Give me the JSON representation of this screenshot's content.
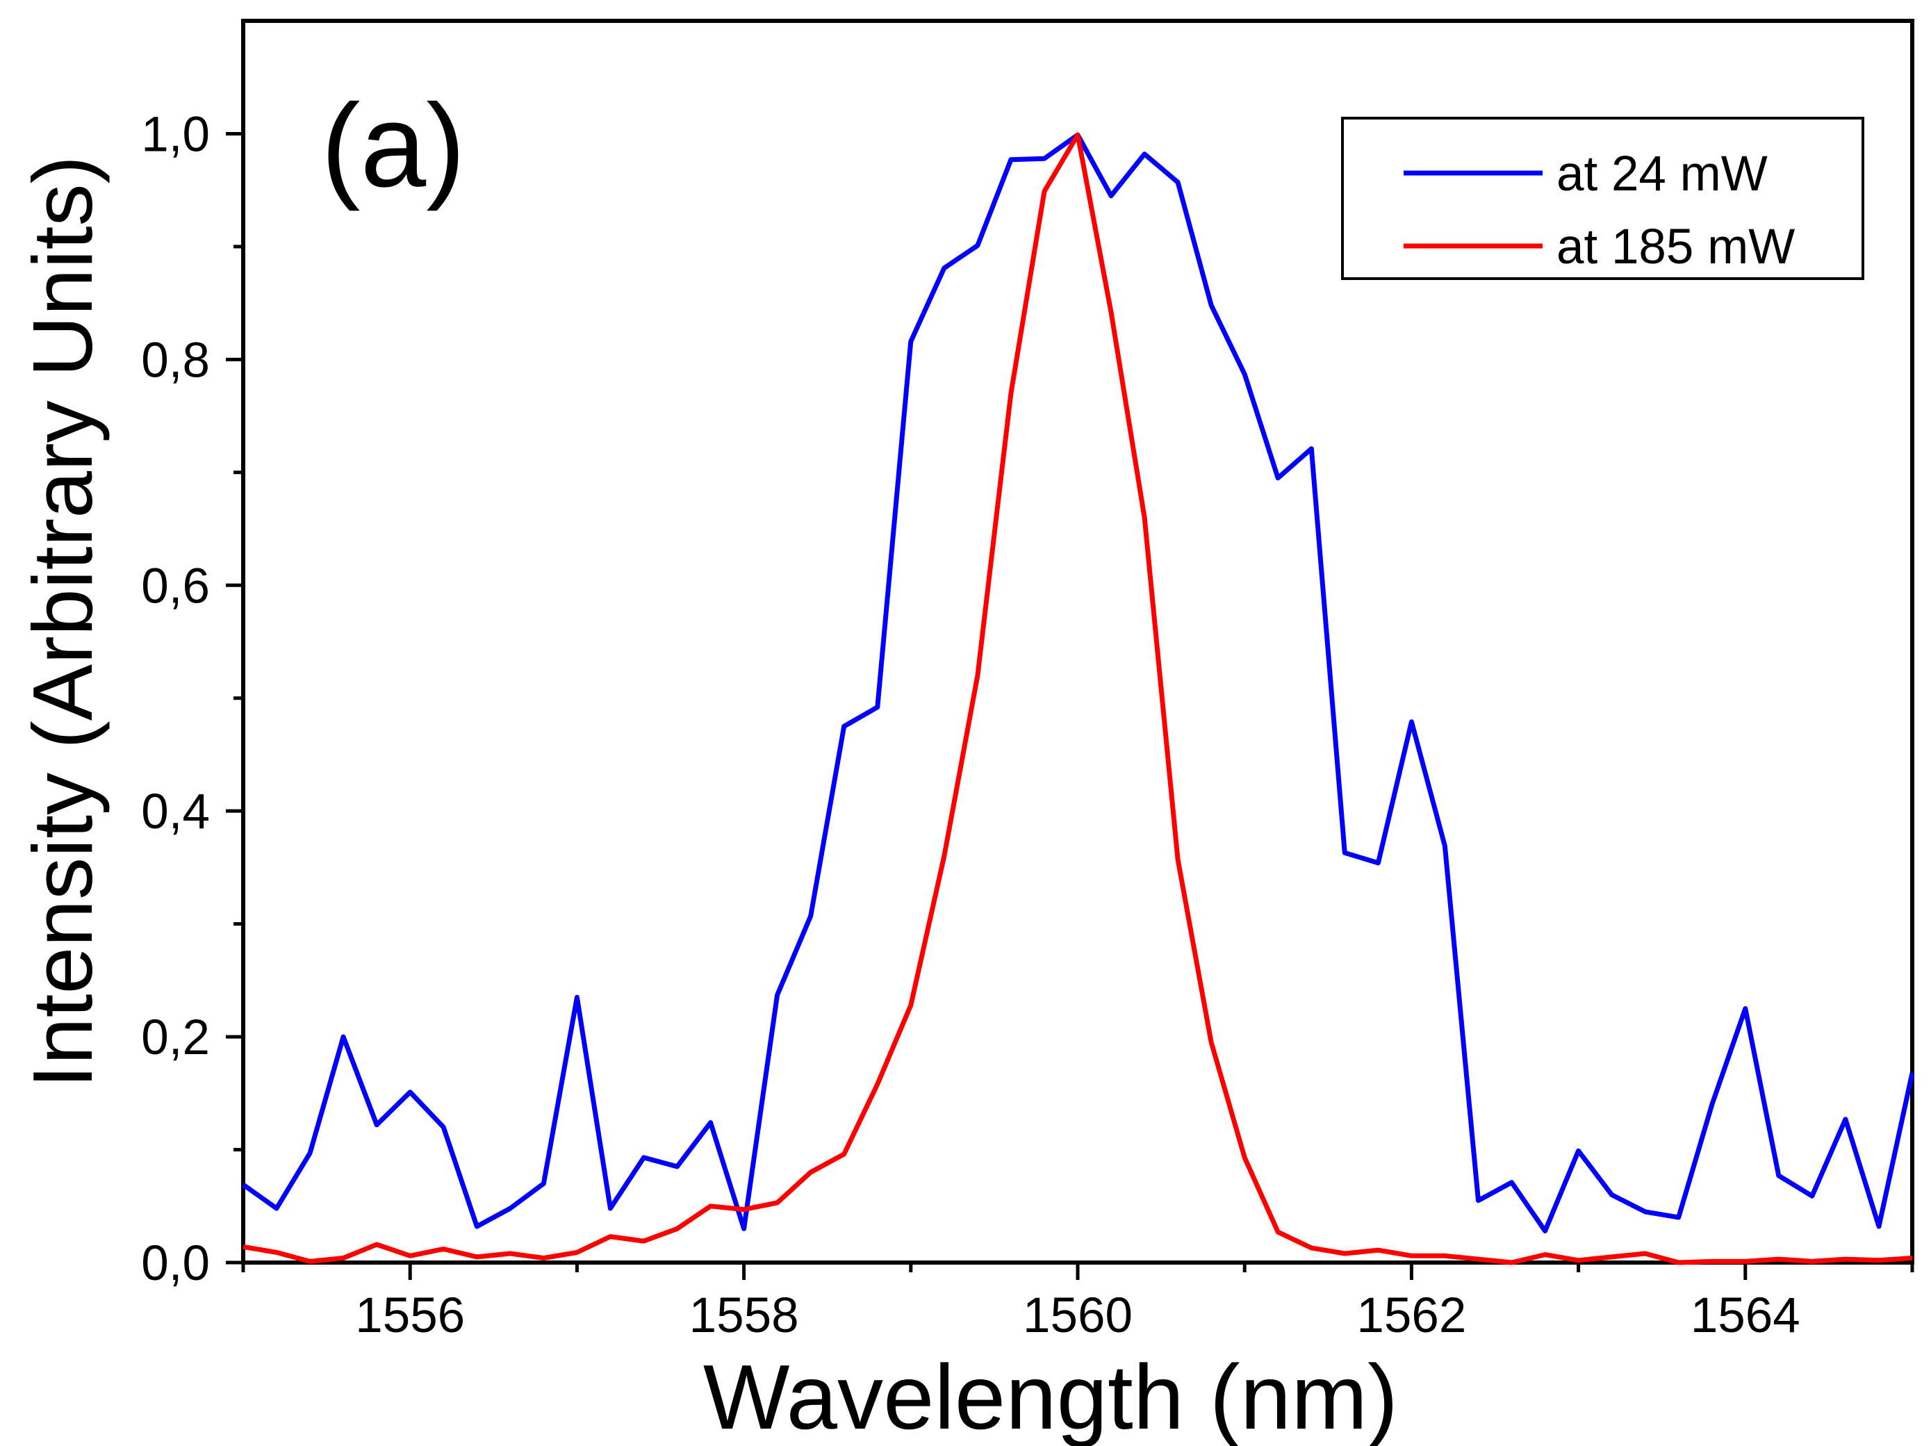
{
  "chart_data": {
    "type": "line",
    "panel_label": "(a)",
    "xlabel": "Wavelength (nm)",
    "ylabel": "Intensity (Arbitrary Units)",
    "xlim": [
      1555,
      1565
    ],
    "ylim": [
      0,
      1.1
    ],
    "x_major_ticks": [
      1556,
      1558,
      1560,
      1562,
      1564
    ],
    "x_tick_labels": [
      "1556",
      "1558",
      "1560",
      "1562",
      "1564"
    ],
    "x_minor_ticks": [
      1555,
      1557,
      1559,
      1561,
      1563,
      1565
    ],
    "y_major_ticks": [
      0,
      0.2,
      0.4,
      0.6,
      0.8,
      1.0
    ],
    "y_tick_labels": [
      "0,0",
      "0,2",
      "0,4",
      "0,6",
      "0,8",
      "1,0"
    ],
    "y_minor_ticks": [
      0.1,
      0.3,
      0.5,
      0.7,
      0.9
    ],
    "grid": false,
    "legend_position": "top-right",
    "series": [
      {
        "name": "at 24 mW",
        "color": "#0000ff",
        "x": [
          1555.0,
          1555.2,
          1555.4,
          1555.6,
          1555.8,
          1556.0,
          1556.2,
          1556.4,
          1556.6,
          1556.8,
          1557.0,
          1557.2,
          1557.4,
          1557.6,
          1557.8,
          1558.0,
          1558.2,
          1558.4,
          1558.6,
          1558.8,
          1559.0,
          1559.2,
          1559.4,
          1559.6,
          1559.8,
          1560.0,
          1560.2,
          1560.4,
          1560.6,
          1560.8,
          1561.0,
          1561.2,
          1561.4,
          1561.6,
          1561.8,
          1562.0,
          1562.2,
          1562.4,
          1562.6,
          1562.8,
          1563.0,
          1563.2,
          1563.4,
          1563.6,
          1563.8,
          1564.0,
          1564.2,
          1564.4,
          1564.6,
          1564.8,
          1565.0
        ],
        "y": [
          0.069,
          0.048,
          0.097,
          0.2,
          0.122,
          0.151,
          0.12,
          0.032,
          0.048,
          0.07,
          0.235,
          0.048,
          0.093,
          0.085,
          0.124,
          0.03,
          0.237,
          0.307,
          0.475,
          0.492,
          0.816,
          0.881,
          0.901,
          0.977,
          0.978,
          0.999,
          0.945,
          0.982,
          0.957,
          0.848,
          0.787,
          0.695,
          0.721,
          0.363,
          0.354,
          0.479,
          0.369,
          0.055,
          0.071,
          0.028,
          0.099,
          0.06,
          0.045,
          0.04,
          0.14,
          0.225,
          0.077,
          0.059,
          0.127,
          0.032,
          0.168
        ]
      },
      {
        "name": "at 185 mW",
        "color": "#ff0000",
        "x": [
          1555.0,
          1555.2,
          1555.4,
          1555.6,
          1555.8,
          1556.0,
          1556.2,
          1556.4,
          1556.6,
          1556.8,
          1557.0,
          1557.2,
          1557.4,
          1557.6,
          1557.8,
          1558.0,
          1558.2,
          1558.4,
          1558.6,
          1558.8,
          1559.0,
          1559.2,
          1559.4,
          1559.6,
          1559.8,
          1560.0,
          1560.2,
          1560.4,
          1560.6,
          1560.8,
          1561.0,
          1561.2,
          1561.4,
          1561.6,
          1561.8,
          1562.0,
          1562.2,
          1562.4,
          1562.6,
          1562.8,
          1563.0,
          1563.2,
          1563.4,
          1563.6,
          1563.8,
          1564.0,
          1564.2,
          1564.4,
          1564.6,
          1564.8,
          1565.0
        ],
        "y": [
          0.014,
          0.009,
          0.001,
          0.004,
          0.016,
          0.006,
          0.012,
          0.005,
          0.008,
          0.004,
          0.009,
          0.023,
          0.019,
          0.03,
          0.05,
          0.047,
          0.053,
          0.08,
          0.096,
          0.158,
          0.228,
          0.36,
          0.52,
          0.77,
          0.949,
          0.999,
          0.842,
          0.66,
          0.357,
          0.195,
          0.093,
          0.027,
          0.013,
          0.008,
          0.011,
          0.006,
          0.006,
          0.003,
          0.0,
          0.007,
          0.002,
          0.005,
          0.008,
          0.0,
          0.001,
          0.001,
          0.003,
          0.001,
          0.003,
          0.002,
          0.004
        ]
      }
    ]
  }
}
